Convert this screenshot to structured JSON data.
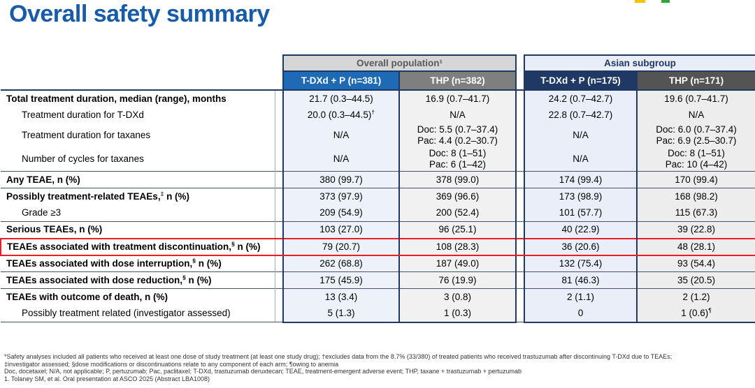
{
  "page": {
    "title": "Overall safety summary"
  },
  "logo": {
    "yellow": "#F2C500",
    "green": "#2EA836"
  },
  "table": {
    "groups": [
      {
        "label": "Overall population¹"
      },
      {
        "label": "Asian subgroup"
      }
    ],
    "columns": [
      "T-DXd + P (n=381)",
      "THP (n=382)",
      "T-DXd + P (n=175)",
      "THP (n=171)"
    ],
    "rows": [
      {
        "label": "Total treatment duration, median (range), months",
        "bold": true,
        "section": true,
        "cells": [
          [
            "21.7 (0.3–44.5)"
          ],
          [
            "16.9 (0.7–41.7)"
          ],
          [
            "24.2 (0.7–42.7)"
          ],
          [
            "19.6 (0.7–41.7)"
          ]
        ]
      },
      {
        "label": "Treatment duration for T-DXd",
        "indent": true,
        "med": true,
        "cells": [
          [
            {
              "t": "20.0 (0.3–44.5)",
              "sup": "†"
            }
          ],
          [
            "N/A"
          ],
          [
            "22.8 (0.7–42.7)"
          ],
          [
            "N/A"
          ]
        ]
      },
      {
        "label": "Treatment duration for taxanes",
        "indent": true,
        "tall": true,
        "cells": [
          [
            "N/A"
          ],
          [
            "Doc: 5.5 (0.7–37.4)",
            "Pac: 4.4 (0.2–30.7)"
          ],
          [
            "N/A"
          ],
          [
            "Doc: 6.0 (0.7–37.4)",
            "Pac: 6.9 (2.5–30.7)"
          ]
        ]
      },
      {
        "label": "Number of cycles for taxanes",
        "indent": true,
        "tall": true,
        "cells": [
          [
            "N/A"
          ],
          [
            "Doc: 8 (1–51)",
            "Pac: 6 (1–42)"
          ],
          [
            "N/A"
          ],
          [
            "Doc: 8 (1–51)",
            "Pac: 10 (4–42)"
          ]
        ]
      },
      {
        "label": "Any TEAE, n (%)",
        "bold": true,
        "section": true,
        "cells": [
          [
            "380 (99.7)"
          ],
          [
            "378 (99.0)"
          ],
          [
            "174 (99.4)"
          ],
          [
            "170 (99.4)"
          ]
        ]
      },
      {
        "label": "Possibly treatment-related TEAEs,",
        "label_sup": "‡",
        "label_post": " n (%)",
        "bold": true,
        "section": true,
        "cells": [
          [
            "373 (97.9)"
          ],
          [
            "369 (96.6)"
          ],
          [
            "173 (98.9)"
          ],
          [
            "168 (98.2)"
          ]
        ]
      },
      {
        "label": "Grade ≥3",
        "indent": true,
        "cells": [
          [
            "209 (54.9)"
          ],
          [
            "200 (52.4)"
          ],
          [
            "101 (57.7)"
          ],
          [
            "115 (67.3)"
          ]
        ]
      },
      {
        "label": "Serious TEAEs, n (%)",
        "bold": true,
        "section": true,
        "cells": [
          [
            "103 (27.0)"
          ],
          [
            "96 (25.1)"
          ],
          [
            "40 (22.9)"
          ],
          [
            "39 (22.8)"
          ]
        ]
      },
      {
        "label": "TEAEs associated with treatment discontinuation,",
        "label_sup": "§",
        "label_post": " n (%)",
        "bold": true,
        "section": true,
        "highlight": true,
        "cells": [
          [
            "79 (20.7)"
          ],
          [
            "108 (28.3)"
          ],
          [
            "36 (20.6)"
          ],
          [
            "48 (28.1)"
          ]
        ]
      },
      {
        "label": "TEAEs associated with dose interruption,",
        "label_sup": "§",
        "label_post": " n (%)",
        "bold": true,
        "section": true,
        "med": true,
        "cells": [
          [
            "262 (68.8)"
          ],
          [
            "187 (49.0)"
          ],
          [
            "132 (75.4)"
          ],
          [
            "93 (54.4)"
          ]
        ]
      },
      {
        "label": "TEAEs associated with dose reduction,",
        "label_sup": "§",
        "label_post": " n (%)",
        "bold": true,
        "section": true,
        "cells": [
          [
            "175 (45.9)"
          ],
          [
            "76 (19.9)"
          ],
          [
            "81 (46.3)"
          ],
          [
            "35 (20.5)"
          ]
        ]
      },
      {
        "label": "TEAEs with outcome of death, n (%)",
        "bold": true,
        "section": true,
        "cells": [
          [
            "13 (3.4)"
          ],
          [
            "3 (0.8)"
          ],
          [
            "2 (1.1)"
          ],
          [
            "2 (1.2)"
          ]
        ]
      },
      {
        "label": "Possibly treatment related (investigator assessed)",
        "indent": true,
        "short": true,
        "cells": [
          [
            "5 (1.3)"
          ],
          [
            "1 (0.3)"
          ],
          [
            "0"
          ],
          [
            {
              "t": "1 (0.6)",
              "sup": "¶"
            }
          ]
        ]
      }
    ]
  },
  "footnotes": [
    "*Safety analyses included all patients who received at least one dose of study treatment (at least one study drug); †excludes data from the 8.7% (33/380) of treated patients who received trastuzumab after discontinuing T-DXd due to TEAEs;",
    "‡investigator assessed; §dose modifications or discontinuations relate to any component of each arm; ¶owing to anemia",
    "Doc, docetaxel; N/A, not applicable; P, pertuzumab; Pac, paclitaxel; T-DXd, trastuzumab deruxtecan; TEAE, treatment-emergent adverse event; THP, taxane + trastuzumab + pertuzumab",
    "1. Tolaney SM, et al. Oral presentation at ASCO 2025 (Abstract LBA1008)"
  ]
}
